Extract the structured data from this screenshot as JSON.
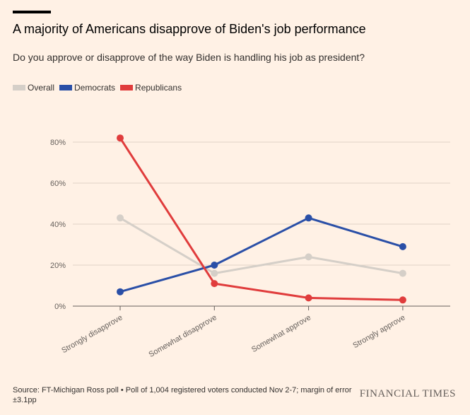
{
  "header": {
    "title": "A majority of Americans disapprove of Biden's job performance",
    "subtitle": "Do you approve or disapprove of the way Biden is handling his job as president?"
  },
  "legend": [
    {
      "label": "Overall",
      "color": "#d5cfc8"
    },
    {
      "label": "Democrats",
      "color": "#2a4fa7"
    },
    {
      "label": "Republicans",
      "color": "#e03c3c"
    }
  ],
  "chart_data": {
    "type": "line",
    "title": "A majority of Americans disapprove of Biden's job performance",
    "subtitle": "Do you approve or disapprove of the way Biden is handling his job as president?",
    "categories": [
      "Strongly disapprove",
      "Somewhat disapprove",
      "Somewhat approve",
      "Strongly approve"
    ],
    "series": [
      {
        "name": "Overall",
        "color": "#d5cfc8",
        "values": [
          43,
          16,
          24,
          16
        ]
      },
      {
        "name": "Democrats",
        "color": "#2a4fa7",
        "values": [
          7,
          20,
          43,
          29
        ]
      },
      {
        "name": "Republicans",
        "color": "#e03c3c",
        "values": [
          82,
          11,
          4,
          3
        ]
      }
    ],
    "yticks": [
      "0%",
      "20%",
      "40%",
      "60%",
      "80%"
    ],
    "ytick_values": [
      0,
      20,
      40,
      60,
      80
    ],
    "ylim": [
      0,
      88
    ],
    "xlabel": "",
    "ylabel": "",
    "legend_position": "top-left",
    "grid": true
  },
  "footer": {
    "source": "Source: FT-Michigan Ross poll • Poll of 1,004 registered voters conducted Nov 2-7; margin of error ±3.1pp",
    "brand": "FINANCIAL TIMES"
  }
}
